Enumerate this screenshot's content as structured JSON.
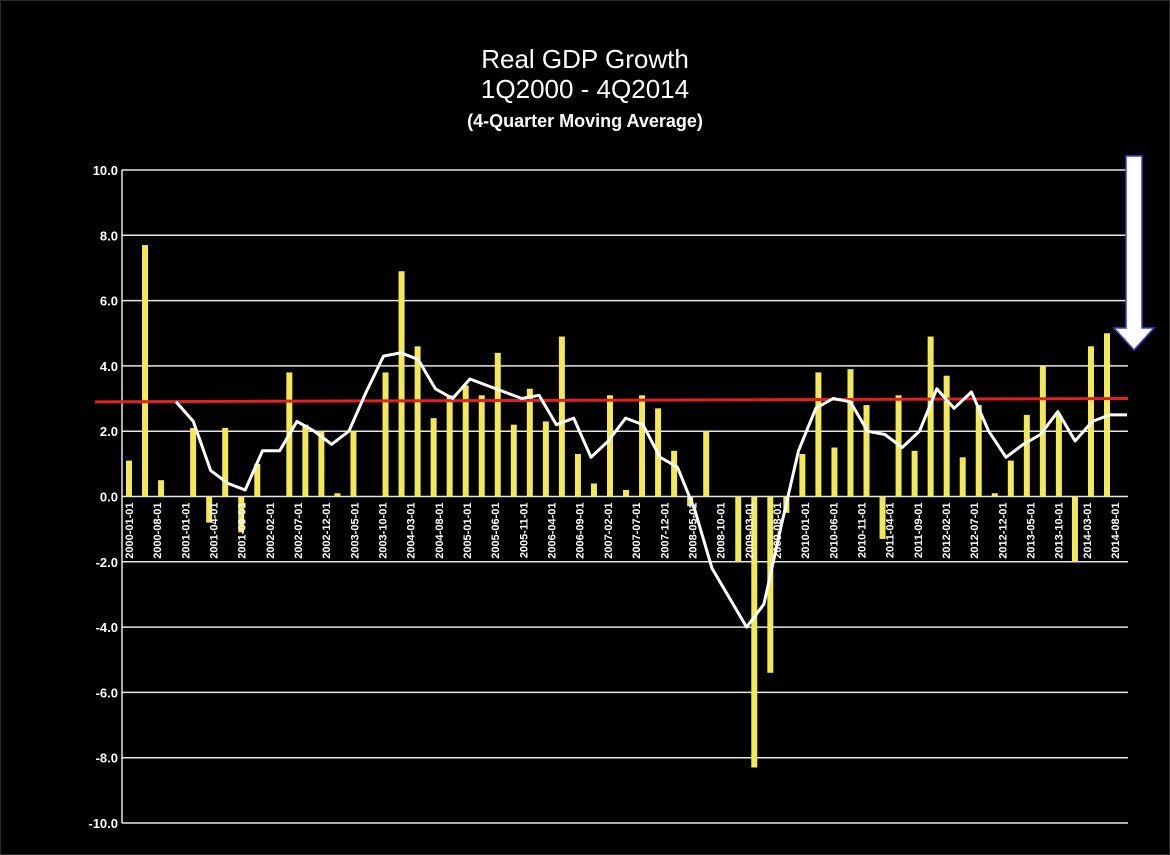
{
  "chart_data": {
    "type": "bar",
    "title": "Real GDP Growth",
    "subtitle": "1Q2000 - 4Q2014",
    "subtitle2": "(4-Quarter Moving Average)",
    "ylim": [
      -10,
      10
    ],
    "yticks": [
      "10.0",
      "8.0",
      "6.0",
      "4.0",
      "2.0",
      "0.0",
      "-2.0",
      "-4.0",
      "-6.0",
      "-8.0",
      "-10.0"
    ],
    "ytick_values": [
      10,
      8,
      6,
      4,
      2,
      0,
      -2,
      -4,
      -6,
      -8,
      -10
    ],
    "grid": true,
    "xtick_labels": [
      "2000-01-01",
      "2000-08-01",
      "2001-01-01",
      "2001-04-01",
      "2001-09-01",
      "2002-02-01",
      "2002-07-01",
      "2002-12-01",
      "2003-05-01",
      "2003-10-01",
      "2004-03-01",
      "2004-08-01",
      "2005-01-01",
      "2005-06-01",
      "2005-11-01",
      "2006-04-01",
      "2006-09-01",
      "2007-02-01",
      "2007-07-01",
      "2007-12-01",
      "2008-05-01",
      "2008-10-01",
      "2009-03-01",
      "2009-08-01",
      "2010-01-01",
      "2010-06-01",
      "2010-11-01",
      "2011-04-01",
      "2011-09-01",
      "2012-02-01",
      "2012-07-01",
      "2012-12-01",
      "2013-05-01",
      "2013-10-01",
      "2014-03-01",
      "2014-08-01"
    ],
    "series": [
      {
        "type": "bar",
        "color": "#f3e85a",
        "values": [
          1.1,
          7.7,
          0.5,
          0.0,
          2.1,
          -0.8,
          2.1,
          -1.1,
          1.0,
          0.0,
          3.8,
          2.2,
          2.0,
          0.1,
          2.0,
          0.0,
          3.8,
          6.9,
          4.6,
          2.4,
          3.1,
          3.4,
          3.1,
          4.4,
          2.2,
          3.3,
          2.3,
          4.9,
          1.3,
          0.4,
          3.1,
          0.2,
          3.1,
          2.7,
          1.4,
          -0.3,
          2.0,
          0.0,
          -2.0,
          -8.3,
          -5.4,
          -0.5,
          1.3,
          3.8,
          1.5,
          3.9,
          2.8,
          -1.3,
          3.1,
          1.4,
          4.9,
          3.7,
          1.2,
          2.8,
          0.1,
          1.1,
          2.5,
          4.0,
          2.5,
          -2.0,
          4.6,
          5.0
        ]
      },
      {
        "type": "line",
        "color": "#ffffff",
        "values": [
          2.9,
          2.3,
          0.8,
          0.4,
          0.2,
          1.4,
          1.4,
          2.3,
          2.0,
          1.6,
          2.0,
          3.2,
          4.3,
          4.4,
          4.2,
          3.3,
          3.0,
          3.6,
          3.4,
          3.2,
          3.0,
          3.1,
          2.2,
          2.4,
          1.2,
          1.7,
          2.4,
          2.2,
          1.2,
          0.9,
          -0.4,
          -2.2,
          -3.1,
          -4.0,
          -3.3,
          -0.9,
          1.4,
          2.7,
          3.0,
          2.9,
          2.0,
          1.9,
          1.5,
          2.0,
          3.3,
          2.7,
          3.2,
          2.0,
          1.2,
          1.6,
          1.9,
          2.6,
          1.7,
          2.3,
          2.5,
          2.5
        ]
      }
    ],
    "reference_line": {
      "value": 2.9,
      "value_end": 3.0,
      "color": "#e41f1f"
    },
    "annotation": {
      "type": "arrow-down",
      "color": "#ffffff",
      "outline": "#3a3fd0"
    }
  }
}
